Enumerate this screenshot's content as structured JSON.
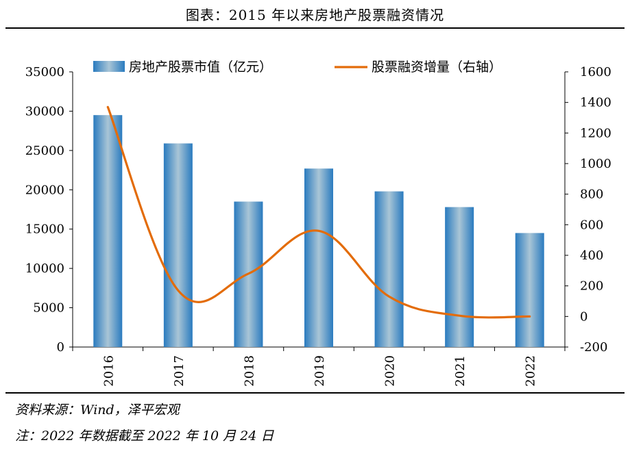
{
  "header": {
    "title": "图表：2015 年以来房地产股票融资情况"
  },
  "chart_data": {
    "type": "bar+line",
    "categories": [
      "2016",
      "2017",
      "2018",
      "2019",
      "2020",
      "2021",
      "2022"
    ],
    "series": [
      {
        "name": "房地产股票市值（亿元）",
        "type": "bar",
        "axis": "left",
        "values": [
          29500,
          25900,
          18500,
          22700,
          19800,
          17800,
          14500
        ]
      },
      {
        "name": "股票融资增量（右轴）",
        "type": "line",
        "axis": "right",
        "values": [
          1370,
          170,
          280,
          560,
          130,
          5,
          0
        ]
      }
    ],
    "y_left": {
      "min": 0,
      "max": 35000,
      "ticks": [
        "0",
        "5000",
        "10000",
        "15000",
        "20000",
        "25000",
        "30000",
        "35000"
      ]
    },
    "y_right": {
      "min": -200,
      "max": 1600,
      "ticks": [
        "-200",
        "0",
        "200",
        "400",
        "600",
        "800",
        "1000",
        "1200",
        "1400",
        "1600"
      ]
    },
    "legend": "top",
    "grid": false,
    "colors": {
      "bar": "#2f7fc1",
      "bar_light": "#a7c4d6",
      "line": "#e36c0a"
    }
  },
  "footer": {
    "source": "资料来源：Wind，泽平宏观",
    "note": "注：2022 年数据截至 2022 年 10 月 24 日"
  }
}
